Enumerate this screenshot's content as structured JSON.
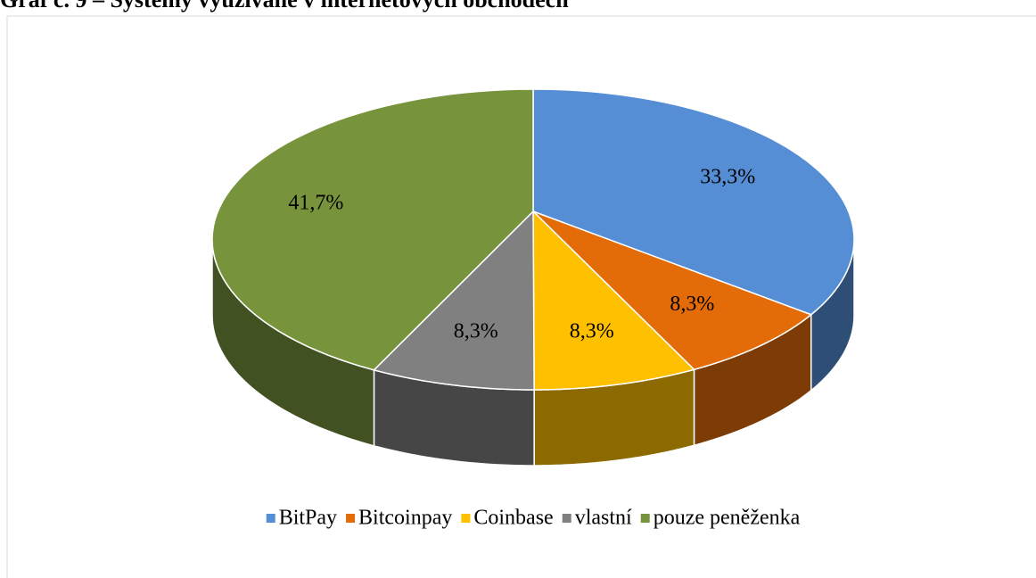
{
  "chart_data": {
    "type": "pie",
    "title": "Graf č. 9 – Systémy využívané v internetových obchodech",
    "categories": [
      "BitPay",
      "Bitcoinpay",
      "Coinbase",
      "vlastní",
      "pouze peněženka"
    ],
    "values": [
      33.3,
      8.3,
      8.3,
      8.3,
      41.7
    ],
    "value_labels": [
      "33,3%",
      "8,3%",
      "8,3%",
      "8,3%",
      "41,7%"
    ],
    "colors": [
      "#558ed5",
      "#e36c09",
      "#ffc000",
      "#808080",
      "#77933c"
    ],
    "legend": "bottom"
  }
}
